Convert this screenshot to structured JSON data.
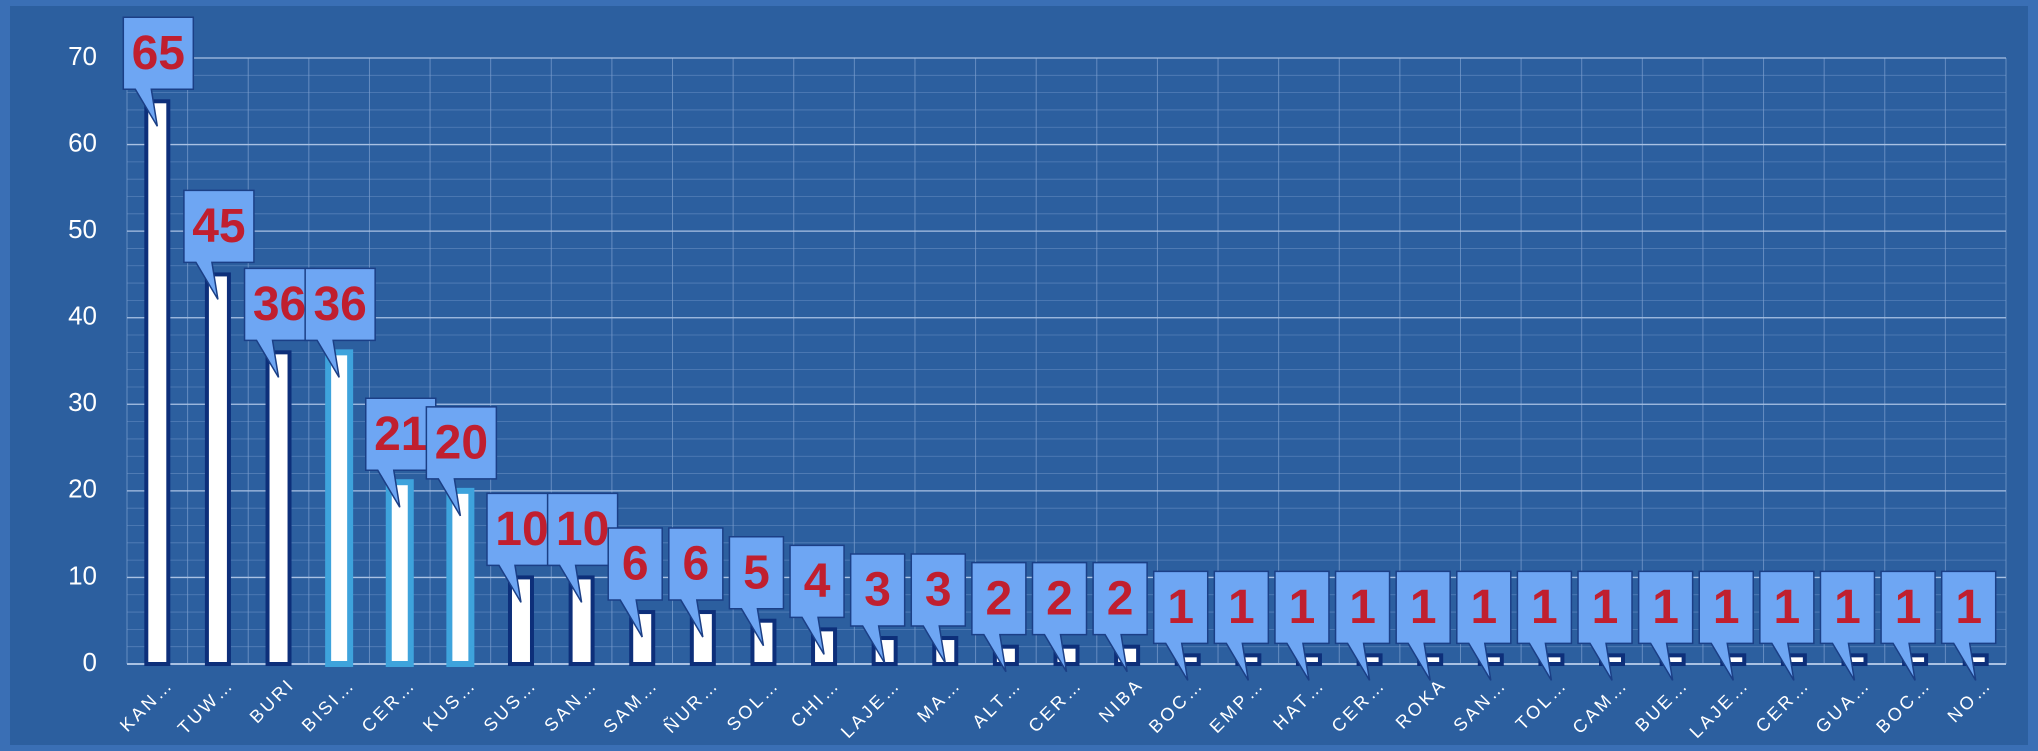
{
  "chart_data": {
    "type": "bar",
    "categories": [
      "KAN…",
      "TUW…",
      "BURI",
      "BISI…",
      "CER…",
      "KUS…",
      "SUS…",
      "SAN…",
      "SAM…",
      "ÑUR…",
      "SOL…",
      "CHI…",
      "LAJE…",
      "MA…",
      "ALT…",
      "CER…",
      "NIBA",
      "BOC…",
      "EMP…",
      "HAT…",
      "CER…",
      "ROKA",
      "SAN…",
      "TOL…",
      "CAM…",
      "BUE…",
      "LAJE…",
      "CER…",
      "GUA…",
      "BOC…",
      "NO…"
    ],
    "values": [
      65,
      45,
      36,
      36,
      21,
      20,
      10,
      10,
      6,
      6,
      5,
      4,
      3,
      3,
      2,
      2,
      2,
      1,
      1,
      1,
      1,
      1,
      1,
      1,
      1,
      1,
      1,
      1,
      1,
      1,
      1
    ],
    "color": "#ffffff",
    "stroke_colors": [
      "#0d2f7a",
      "#0d2f7a",
      "#0d2f7a",
      "#3ea3dc",
      "#3ea3dc",
      "#3ea3dc",
      "#0d2f7a",
      "#0d2f7a",
      "#0d2f7a",
      "#0d2f7a",
      "#0d2f7a",
      "#0d2f7a",
      "#0d2f7a",
      "#0d2f7a",
      "#0d2f7a",
      "#0d2f7a",
      "#0d2f7a",
      "#0d2f7a",
      "#0d2f7a",
      "#0d2f7a",
      "#0d2f7a",
      "#0d2f7a",
      "#0d2f7a",
      "#0d2f7a",
      "#0d2f7a",
      "#0d2f7a",
      "#0d2f7a",
      "#0d2f7a",
      "#0d2f7a",
      "#0d2f7a",
      "#0d2f7a"
    ],
    "ylim": [
      0,
      70
    ],
    "yticks": [
      0,
      10,
      20,
      30,
      40,
      50,
      60,
      70
    ],
    "grid": true
  }
}
